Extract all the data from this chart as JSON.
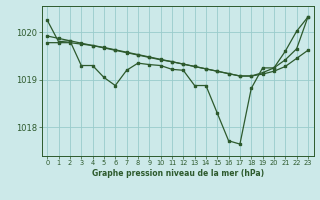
{
  "bg_color": "#cce9e9",
  "line_color": "#2d5a2d",
  "grid_color": "#99cccc",
  "xlabel": "Graphe pression niveau de la mer (hPa)",
  "xlabel_color": "#2d5a2d",
  "tick_color": "#2d5a2d",
  "yticks": [
    1018,
    1019,
    1020
  ],
  "xticks": [
    0,
    1,
    2,
    3,
    4,
    5,
    6,
    7,
    8,
    9,
    10,
    11,
    12,
    13,
    14,
    15,
    16,
    17,
    18,
    19,
    20,
    21,
    22,
    23
  ],
  "xlim": [
    -0.5,
    23.5
  ],
  "ylim": [
    1017.4,
    1020.55
  ],
  "series_jagged_x": [
    0,
    1,
    2,
    3,
    4,
    5,
    6,
    7,
    8,
    9,
    10,
    11,
    12,
    13,
    14,
    15,
    16,
    17,
    18,
    19,
    20,
    21,
    22,
    23
  ],
  "series_jagged_y": [
    1020.25,
    1019.8,
    1019.82,
    1019.3,
    1019.3,
    1019.05,
    1018.88,
    1019.2,
    1019.35,
    1019.32,
    1019.3,
    1019.22,
    1019.2,
    1018.88,
    1018.88,
    1018.3,
    1017.72,
    1017.65,
    1018.82,
    1019.25,
    1019.25,
    1019.6,
    1020.02,
    1020.32
  ],
  "series_smooth1_x": [
    0,
    1,
    2,
    3,
    4,
    5,
    6,
    7,
    8,
    9,
    10,
    11,
    12,
    13,
    14,
    15,
    16,
    17,
    18,
    19,
    20,
    21,
    22,
    23
  ],
  "series_smooth1_y": [
    1019.92,
    1019.87,
    1019.82,
    1019.77,
    1019.72,
    1019.67,
    1019.62,
    1019.57,
    1019.52,
    1019.47,
    1019.42,
    1019.38,
    1019.33,
    1019.28,
    1019.23,
    1019.18,
    1019.13,
    1019.08,
    1019.08,
    1019.12,
    1019.18,
    1019.28,
    1019.45,
    1019.62
  ],
  "series_smooth2_x": [
    0,
    1,
    2,
    3,
    4,
    5,
    6,
    7,
    8,
    9,
    10,
    11,
    12,
    13,
    14,
    15,
    16,
    17,
    18,
    19,
    20,
    21,
    22,
    23
  ],
  "series_smooth2_y": [
    1019.78,
    1019.78,
    1019.78,
    1019.75,
    1019.72,
    1019.68,
    1019.63,
    1019.58,
    1019.53,
    1019.48,
    1019.43,
    1019.38,
    1019.33,
    1019.28,
    1019.23,
    1019.18,
    1019.13,
    1019.08,
    1019.08,
    1019.15,
    1019.25,
    1019.42,
    1019.65,
    1020.32
  ]
}
